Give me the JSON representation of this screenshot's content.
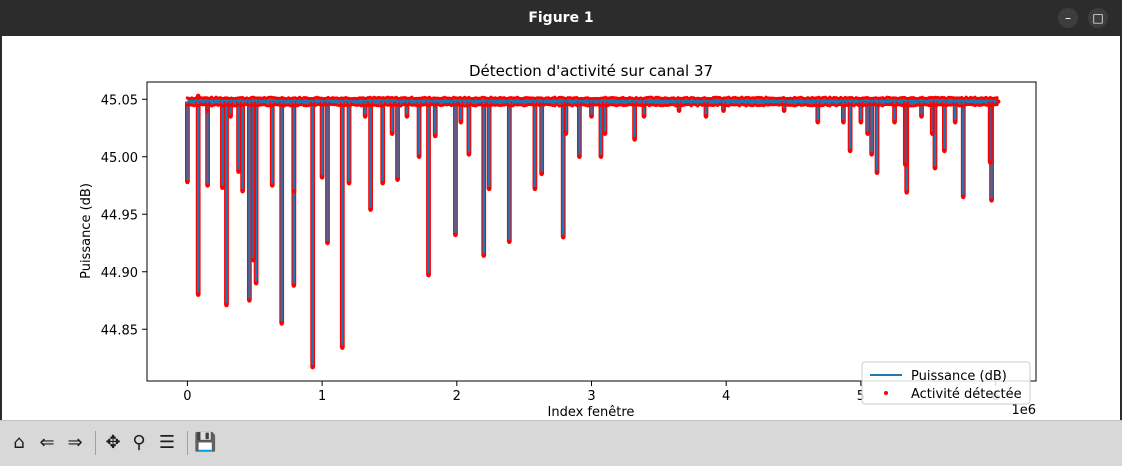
{
  "window": {
    "title": "Figure 1",
    "minimize_glyph": "–",
    "maximize_glyph": "□"
  },
  "toolbar": {
    "home_icon": "home-icon",
    "back_icon": "back-arrow-icon",
    "forward_icon": "forward-arrow-icon",
    "pan_icon": "pan-icon",
    "zoom_icon": "zoom-icon",
    "configure_icon": "configure-subplots-icon",
    "save_icon": "save-icon"
  },
  "chart_data": {
    "type": "line",
    "title": "Détection d'activité sur canal 37",
    "xlabel": "Index fenêtre",
    "ylabel": "Puissance (dB)",
    "x_offset_label": "1e6",
    "xlim": [
      -0.3,
      6.3
    ],
    "ylim": [
      44.805,
      45.065
    ],
    "x_ticks": [
      0,
      1,
      2,
      3,
      4,
      5,
      6
    ],
    "x_tick_labels": [
      "0",
      "1",
      "2",
      "3",
      "4",
      "5",
      "6"
    ],
    "y_ticks": [
      44.85,
      44.9,
      44.95,
      45.0,
      45.05
    ],
    "y_tick_labels": [
      "44.85",
      "44.90",
      "44.95",
      "45.00",
      "45.05"
    ],
    "grid": false,
    "legend_position": "lower-right",
    "baseline": 45.048,
    "x_start": 0,
    "x_end": 6.02,
    "series": [
      {
        "name": "Puissance (dB)",
        "color": "#1f77b4",
        "kind": "line"
      },
      {
        "name": "Activité détectée",
        "color": "#ff0000",
        "kind": "scatter"
      }
    ],
    "dips": [
      [
        0.0,
        44.978
      ],
      [
        0.08,
        44.88
      ],
      [
        0.15,
        45.04
      ],
      [
        0.15,
        44.975
      ],
      [
        0.26,
        44.973
      ],
      [
        0.29,
        44.871
      ],
      [
        0.32,
        45.035
      ],
      [
        0.38,
        44.987
      ],
      [
        0.41,
        44.97
      ],
      [
        0.46,
        44.875
      ],
      [
        0.49,
        44.91
      ],
      [
        0.51,
        44.89
      ],
      [
        0.63,
        44.975
      ],
      [
        0.7,
        44.855
      ],
      [
        0.79,
        44.888
      ],
      [
        0.79,
        44.97
      ],
      [
        0.93,
        44.817
      ],
      [
        1.0,
        44.982
      ],
      [
        1.04,
        44.925
      ],
      [
        1.15,
        44.834
      ],
      [
        1.2,
        44.977
      ],
      [
        1.32,
        45.035
      ],
      [
        1.36,
        44.954
      ],
      [
        1.45,
        44.977
      ],
      [
        1.52,
        45.02
      ],
      [
        1.56,
        44.98
      ],
      [
        1.63,
        45.035
      ],
      [
        1.72,
        45.0
      ],
      [
        1.79,
        44.897
      ],
      [
        1.84,
        45.018
      ],
      [
        1.99,
        44.932
      ],
      [
        2.03,
        45.03
      ],
      [
        2.09,
        45.002
      ],
      [
        2.2,
        44.914
      ],
      [
        2.24,
        44.972
      ],
      [
        2.39,
        44.926
      ],
      [
        2.58,
        44.972
      ],
      [
        2.63,
        44.985
      ],
      [
        2.79,
        44.93
      ],
      [
        2.81,
        45.02
      ],
      [
        2.91,
        45.0
      ],
      [
        3.0,
        45.035
      ],
      [
        3.07,
        45.0
      ],
      [
        3.1,
        45.02
      ],
      [
        3.32,
        45.015
      ],
      [
        3.39,
        45.035
      ],
      [
        3.65,
        45.04
      ],
      [
        3.85,
        45.035
      ],
      [
        3.98,
        45.04
      ],
      [
        4.43,
        45.04
      ],
      [
        4.68,
        45.03
      ],
      [
        4.87,
        45.03
      ],
      [
        4.92,
        45.005
      ],
      [
        5.0,
        45.03
      ],
      [
        5.05,
        45.02
      ],
      [
        5.08,
        45.002
      ],
      [
        5.12,
        44.986
      ],
      [
        5.25,
        45.03
      ],
      [
        5.33,
        44.993
      ],
      [
        5.34,
        44.969
      ],
      [
        5.45,
        45.035
      ],
      [
        5.53,
        45.02
      ],
      [
        5.55,
        44.99
      ],
      [
        5.62,
        45.005
      ],
      [
        5.7,
        45.03
      ],
      [
        5.76,
        44.965
      ],
      [
        5.96,
        44.995
      ],
      [
        5.97,
        44.962
      ]
    ]
  }
}
